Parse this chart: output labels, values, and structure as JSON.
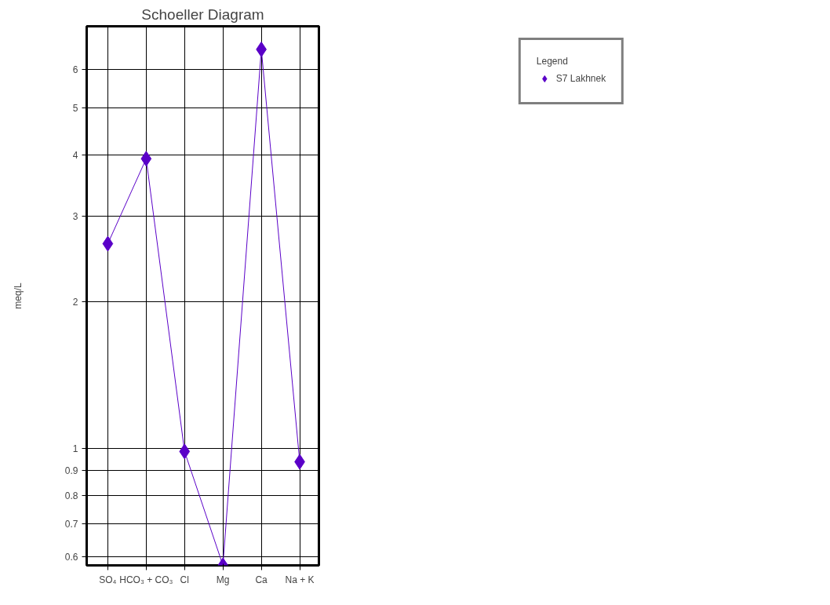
{
  "chart_data": {
    "type": "line",
    "title": "Schoeller Diagram",
    "ylabel": "meq/L",
    "legend_title": "Legend",
    "categories": [
      "SO₄",
      "HCO₃ + CO₃",
      "Cl",
      "Mg",
      "Ca",
      "Na + K"
    ],
    "series": [
      {
        "name": "S7 Lakhnek",
        "color": "#5a00c8",
        "values": [
          2.63,
          3.93,
          0.985,
          0.575,
          6.59,
          0.938
        ]
      }
    ],
    "log": true,
    "ylim": [
      0.575,
      7.35
    ],
    "yticks": [
      0.6,
      0.7,
      0.8,
      0.9,
      1,
      2,
      3,
      4,
      5,
      6
    ],
    "grid": true,
    "legend": "top right",
    "marker": "diamond",
    "line_style": "solid"
  }
}
